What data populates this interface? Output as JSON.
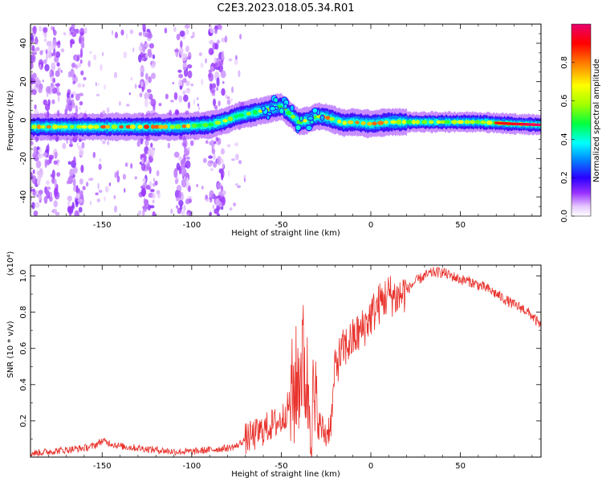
{
  "title": "C2E3.2023.018.05.34.R01",
  "chart_data": [
    {
      "type": "heatmap",
      "xlabel": "Height of straight line (km)",
      "ylabel": "Frequency (Hz)",
      "xlim": [
        -190,
        95
      ],
      "ylim": [
        -50,
        50
      ],
      "xticks": [
        -150,
        -100,
        -50,
        0,
        50
      ],
      "yticks": [
        -40,
        -20,
        0,
        20,
        40
      ],
      "colorbar": {
        "label": "Normalized spectral amplitude",
        "range": [
          0,
          1
        ],
        "ticks": [
          "0.0",
          "0.2",
          "0.4",
          "0.6",
          "0.8"
        ]
      },
      "ridge": {
        "x": [
          -190,
          -170,
          -150,
          -130,
          -110,
          -100,
          -90,
          -80,
          -75,
          -70,
          -65,
          -60,
          -55,
          -50,
          -45,
          -40,
          -35,
          -30,
          -25,
          -20,
          -15,
          -10,
          -5,
          0,
          10,
          20,
          40,
          60,
          80,
          95
        ],
        "freq": [
          -3.5,
          -3.5,
          -3.5,
          -3.5,
          -3.5,
          -3,
          -2.5,
          0,
          2,
          3,
          4,
          5,
          6,
          7,
          3,
          -1,
          0,
          2,
          1.5,
          0,
          -1.5,
          -1,
          -1.5,
          -2,
          -1,
          -1,
          -1,
          -1,
          -2,
          -2.5
        ]
      },
      "noise_bands_x": [
        -188,
        -178,
        -165,
        -125,
        -105,
        -86
      ]
    },
    {
      "type": "line",
      "xlabel": "Height of straight line (km)",
      "ylabel": "SNR (10 * v/v)",
      "y_multiplier": "(x10⁴)",
      "xlim": [
        -190,
        95
      ],
      "ylim": [
        0,
        1.06
      ],
      "xticks": [
        -150,
        -100,
        -50,
        0,
        50
      ],
      "yticks": [
        0.2,
        0.4,
        0.6,
        0.8,
        1.0
      ],
      "series": [
        {
          "color": "#e8302a",
          "points": [
            [
              -190,
              0.02
            ],
            [
              -180,
              0.03
            ],
            [
              -170,
              0.04
            ],
            [
              -160,
              0.05
            ],
            [
              -155,
              0.06
            ],
            [
              -150,
              0.09
            ],
            [
              -140,
              0.06
            ],
            [
              -130,
              0.05
            ],
            [
              -120,
              0.04
            ],
            [
              -110,
              0.03
            ],
            [
              -100,
              0.03
            ],
            [
              -90,
              0.04
            ],
            [
              -80,
              0.05
            ],
            [
              -75,
              0.06
            ],
            [
              -70,
              0.1
            ],
            [
              -65,
              0.12
            ],
            [
              -60,
              0.15
            ],
            [
              -55,
              0.18
            ],
            [
              -50,
              0.2
            ],
            [
              -45,
              0.3
            ],
            [
              -40,
              0.45
            ],
            [
              -38,
              0.55
            ],
            [
              -35,
              0.35
            ],
            [
              -30,
              0.2
            ],
            [
              -25,
              0.12
            ],
            [
              -22,
              0.2
            ],
            [
              -20,
              0.5
            ],
            [
              -15,
              0.6
            ],
            [
              -10,
              0.65
            ],
            [
              -5,
              0.7
            ],
            [
              0,
              0.78
            ],
            [
              5,
              0.85
            ],
            [
              10,
              0.9
            ],
            [
              15,
              0.88
            ],
            [
              20,
              0.92
            ],
            [
              25,
              0.97
            ],
            [
              30,
              1.0
            ],
            [
              35,
              1.02
            ],
            [
              40,
              1.02
            ],
            [
              45,
              1.0
            ],
            [
              50,
              0.98
            ],
            [
              55,
              0.97
            ],
            [
              60,
              0.95
            ],
            [
              65,
              0.93
            ],
            [
              70,
              0.9
            ],
            [
              75,
              0.87
            ],
            [
              80,
              0.84
            ],
            [
              85,
              0.82
            ],
            [
              90,
              0.78
            ],
            [
              95,
              0.72
            ]
          ]
        }
      ]
    }
  ]
}
